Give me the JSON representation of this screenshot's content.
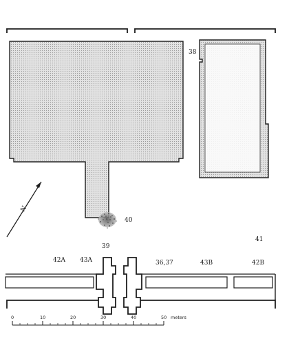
{
  "plan": {
    "labels": {
      "l38": "38",
      "l40": "40",
      "l39": "39",
      "l41": "41",
      "l42a": "42A",
      "l43a": "43A",
      "l3637": "36,37",
      "l43b": "43B",
      "l42b": "42B"
    },
    "north_arrow": {
      "label": "N"
    },
    "scale": {
      "ticks": [
        "0",
        "10",
        "20",
        "30",
        "40",
        "50"
      ],
      "unit": "meters"
    }
  }
}
